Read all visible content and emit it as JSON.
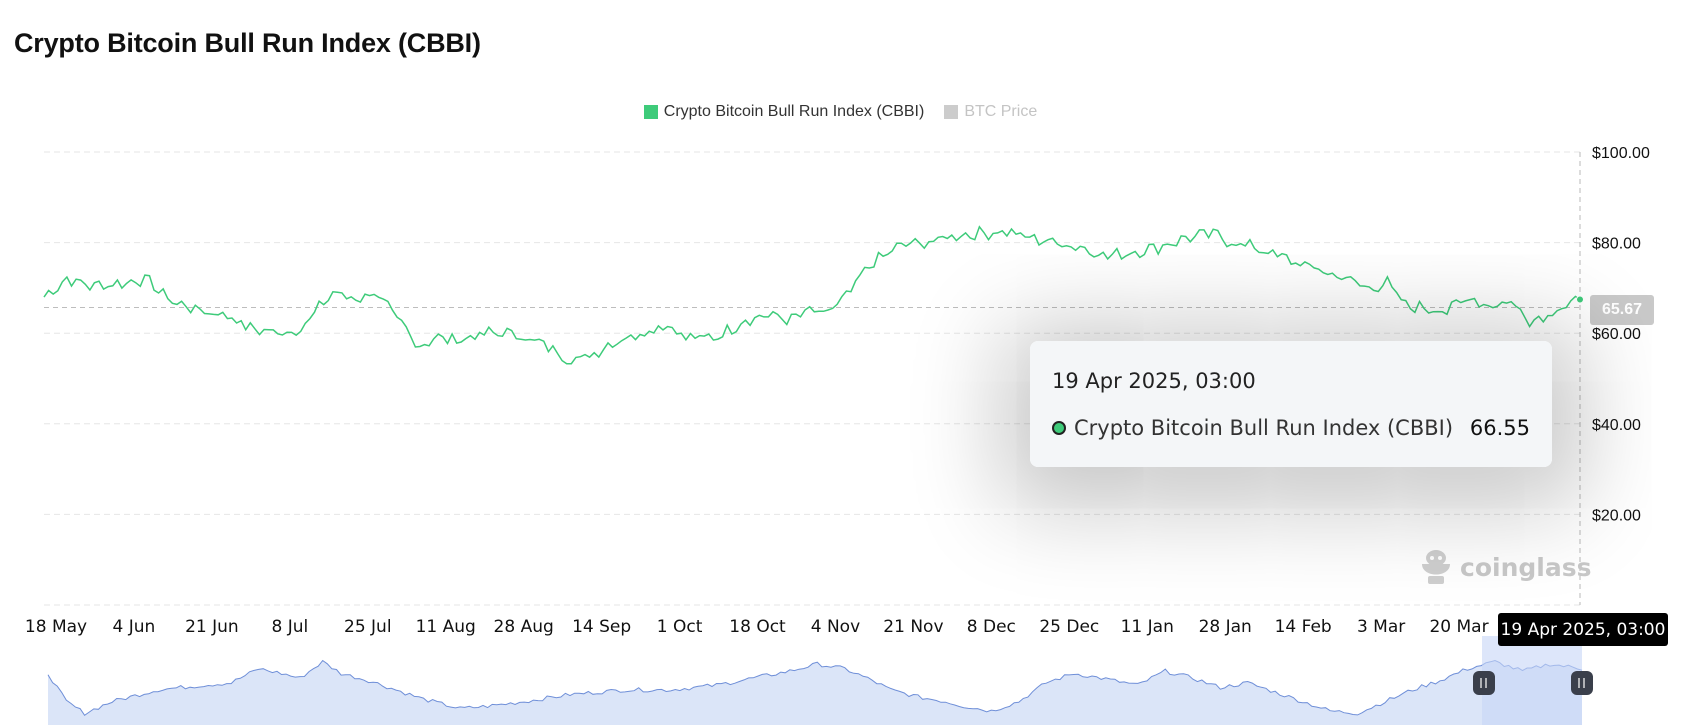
{
  "page": {
    "title": "Crypto Bitcoin Bull Run Index (CBBI)"
  },
  "legend": [
    {
      "label": "Crypto Bitcoin Bull Run Index (CBBI)",
      "color": "#3ecb7a",
      "active": true
    },
    {
      "label": "BTC Price",
      "color": "#cccccc",
      "active": false
    }
  ],
  "colors": {
    "series": "#3ecb7a",
    "navigator_line": "#6f8fd8",
    "navigator_fill": "#dbe5f8",
    "grid": "#e6e6e6"
  },
  "chart_data": {
    "type": "line",
    "title": "Crypto Bitcoin Bull Run Index (CBBI)",
    "xlabel": "",
    "ylabel": "",
    "ylim": [
      0,
      100
    ],
    "y_ticks": [
      "$100.00",
      "$80.00",
      "$60.00",
      "$40.00",
      "$20.00"
    ],
    "y_tick_values": [
      100,
      80,
      60,
      40,
      20
    ],
    "x_ticks": [
      "18 May",
      "4 Jun",
      "21 Jun",
      "8 Jul",
      "25 Jul",
      "11 Aug",
      "28 Aug",
      "14 Sep",
      "1 Oct",
      "18 Oct",
      "4 Nov",
      "21 Nov",
      "8 Dec",
      "25 Dec",
      "11 Jan",
      "28 Jan",
      "14 Feb",
      "3 Mar",
      "20 Mar"
    ],
    "x_tick_index": [
      0,
      17,
      34,
      51,
      68,
      85,
      102,
      119,
      136,
      153,
      170,
      187,
      204,
      221,
      238,
      255,
      272,
      289,
      306
    ],
    "series": [
      {
        "name": "Crypto Bitcoin Bull Run Index (CBBI)",
        "start_date": "18 May 2024",
        "step_days": 1,
        "anchors": [
          [
            0,
            68
          ],
          [
            5,
            72
          ],
          [
            10,
            70.5
          ],
          [
            17,
            71
          ],
          [
            22,
            72
          ],
          [
            28,
            67
          ],
          [
            34,
            65
          ],
          [
            40,
            64
          ],
          [
            45,
            61
          ],
          [
            49,
            60.5
          ],
          [
            51,
            60
          ],
          [
            56,
            61
          ],
          [
            63,
            69
          ],
          [
            68,
            67.5
          ],
          [
            72,
            69
          ],
          [
            78,
            62
          ],
          [
            82,
            57
          ],
          [
            85,
            59
          ],
          [
            90,
            58.5
          ],
          [
            97,
            60
          ],
          [
            102,
            60
          ],
          [
            105,
            59
          ],
          [
            110,
            57
          ],
          [
            115,
            54
          ],
          [
            119,
            55
          ],
          [
            124,
            58
          ],
          [
            130,
            60
          ],
          [
            136,
            62
          ],
          [
            140,
            59
          ],
          [
            146,
            59
          ],
          [
            150,
            61
          ],
          [
            153,
            63
          ],
          [
            158,
            64
          ],
          [
            163,
            63
          ],
          [
            167,
            65
          ],
          [
            170,
            64
          ],
          [
            175,
            68
          ],
          [
            180,
            75
          ],
          [
            187,
            79.5
          ],
          [
            193,
            80
          ],
          [
            198,
            81.5
          ],
          [
            204,
            82
          ],
          [
            210,
            82.5
          ],
          [
            215,
            81
          ],
          [
            221,
            80
          ],
          [
            226,
            79
          ],
          [
            232,
            77
          ],
          [
            238,
            78
          ],
          [
            243,
            79
          ],
          [
            249,
            81
          ],
          [
            255,
            82
          ],
          [
            259,
            80
          ],
          [
            264,
            79
          ],
          [
            272,
            76
          ],
          [
            278,
            74
          ],
          [
            284,
            72
          ],
          [
            289,
            70
          ],
          [
            293,
            71
          ],
          [
            297,
            66
          ],
          [
            302,
            65.5
          ],
          [
            306,
            65
          ],
          [
            311,
            68
          ],
          [
            315,
            66
          ],
          [
            320,
            67
          ],
          [
            324,
            63
          ],
          [
            327,
            63.5
          ],
          [
            331,
            66
          ],
          [
            335,
            67
          ]
        ],
        "last_value": 65.67
      }
    ],
    "last_value_label": "65.67",
    "crosshair_label": "19 Apr 2025, 03:00",
    "tooltip": {
      "date": "19 Apr 2025, 03:00",
      "series_name": "Crypto Bitcoin Bull Run Index (CBBI)",
      "value": "66.55"
    },
    "navigator": {
      "anchors": [
        [
          0,
          62
        ],
        [
          4,
          50
        ],
        [
          8,
          45
        ],
        [
          14,
          50
        ],
        [
          24,
          55
        ],
        [
          34,
          57
        ],
        [
          40,
          58
        ],
        [
          46,
          64
        ],
        [
          51,
          62
        ],
        [
          55,
          60
        ],
        [
          60,
          67
        ],
        [
          64,
          62
        ],
        [
          70,
          59
        ],
        [
          76,
          55
        ],
        [
          82,
          51
        ],
        [
          90,
          47
        ],
        [
          96,
          48
        ],
        [
          104,
          50
        ],
        [
          114,
          53
        ],
        [
          126,
          55
        ],
        [
          136,
          55
        ],
        [
          146,
          57
        ],
        [
          154,
          60
        ],
        [
          162,
          63
        ],
        [
          168,
          66
        ],
        [
          174,
          64
        ],
        [
          180,
          59
        ],
        [
          184,
          55
        ],
        [
          190,
          52
        ],
        [
          196,
          50
        ],
        [
          200,
          48
        ],
        [
          206,
          46
        ],
        [
          212,
          50
        ],
        [
          218,
          58
        ],
        [
          224,
          62
        ],
        [
          230,
          60
        ],
        [
          238,
          57
        ],
        [
          244,
          63
        ],
        [
          250,
          60
        ],
        [
          256,
          56
        ],
        [
          262,
          58
        ],
        [
          268,
          54
        ],
        [
          274,
          50
        ],
        [
          280,
          46
        ],
        [
          286,
          45
        ],
        [
          292,
          50
        ],
        [
          298,
          55
        ],
        [
          304,
          59
        ],
        [
          310,
          64
        ],
        [
          316,
          67
        ],
        [
          322,
          63
        ],
        [
          328,
          66
        ],
        [
          335,
          64
        ]
      ],
      "ylim": [
        40,
        72
      ]
    }
  },
  "watermark": {
    "text": "coinglass"
  }
}
